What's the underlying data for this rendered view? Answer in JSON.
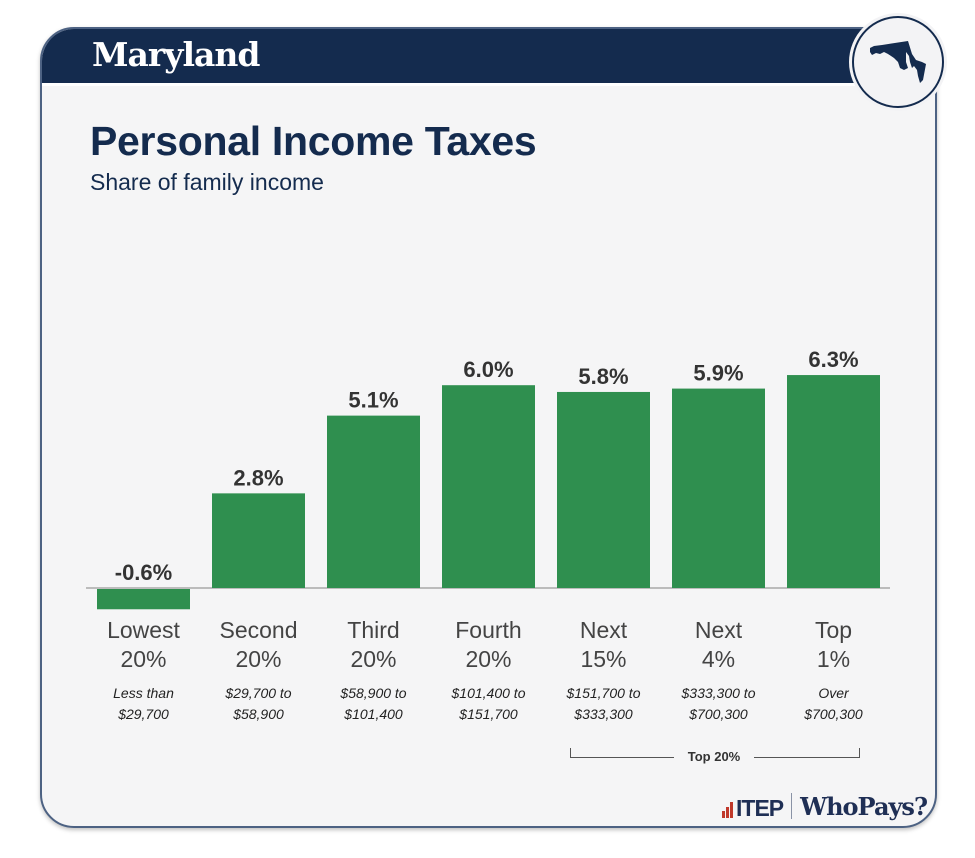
{
  "header": {
    "state": "Maryland",
    "state_icon": "maryland-map-icon"
  },
  "title": "Personal Income Taxes",
  "subtitle": "Share of family income",
  "chart_data": {
    "type": "bar",
    "title": "Personal Income Taxes",
    "subtitle": "Share of family income",
    "xlabel": "",
    "ylabel": "",
    "ylim": [
      -0.6,
      6.3
    ],
    "grid": false,
    "categories": [
      "Lowest 20%",
      "Second 20%",
      "Third 20%",
      "Fourth 20%",
      "Next 15%",
      "Next 4%",
      "Top 1%"
    ],
    "category_lines": [
      [
        "Lowest",
        "20%"
      ],
      [
        "Second",
        "20%"
      ],
      [
        "Third",
        "20%"
      ],
      [
        "Fourth",
        "20%"
      ],
      [
        "Next",
        "15%"
      ],
      [
        "Next",
        "4%"
      ],
      [
        "Top",
        "1%"
      ]
    ],
    "income_ranges": [
      [
        "Less than",
        "$29,700"
      ],
      [
        "$29,700 to",
        "$58,900"
      ],
      [
        "$58,900 to",
        "$101,400"
      ],
      [
        "$101,400 to",
        "$151,700"
      ],
      [
        "$151,700 to",
        "$333,300"
      ],
      [
        "$333,300 to",
        "$700,300"
      ],
      [
        "Over",
        "$700,300"
      ]
    ],
    "values": [
      -0.6,
      2.8,
      5.1,
      6.0,
      5.8,
      5.9,
      6.3
    ],
    "value_labels": [
      "-0.6%",
      "2.8%",
      "5.1%",
      "6.0%",
      "5.8%",
      "5.9%",
      "6.3%"
    ],
    "annotations": [
      {
        "text": "Top 20%",
        "spans": [
          "Next 15%",
          "Next 4%",
          "Top 1%"
        ]
      }
    ],
    "bar_color": "#2f8f4f"
  },
  "footer": {
    "logo1": "ITEP",
    "logo2": "WhoPays?"
  },
  "colors": {
    "navy": "#142b4e",
    "green": "#2f8f4f",
    "itep_red": "#c0392b"
  }
}
